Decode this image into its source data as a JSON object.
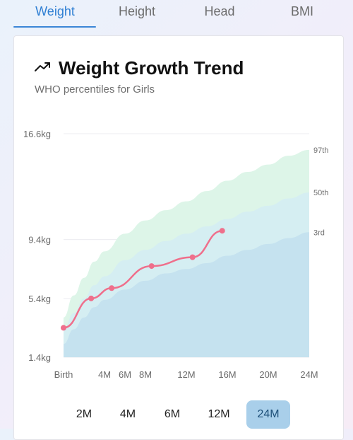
{
  "tabs": [
    {
      "label": "Weight",
      "active": true
    },
    {
      "label": "Height",
      "active": false
    },
    {
      "label": "Head",
      "active": false
    },
    {
      "label": "BMI",
      "active": false
    }
  ],
  "card": {
    "title": "Weight Growth Trend",
    "subtitle": "WHO percentiles for Girls",
    "title_icon": "trending-up-icon"
  },
  "chart_data": {
    "type": "line",
    "x_tick_labels": [
      "Birth",
      "4M",
      "6M",
      "8M",
      "12M",
      "16M",
      "20M",
      "24M"
    ],
    "x_tick_months": [
      0,
      4,
      6,
      8,
      12,
      16,
      20,
      24
    ],
    "y_tick_labels": [
      "16.6kg",
      "9.4kg",
      "5.4kg",
      "1.4kg"
    ],
    "y_tick_values": [
      16.6,
      9.4,
      5.4,
      1.4
    ],
    "ylim": [
      1.4,
      16.6
    ],
    "xlim": [
      0,
      24
    ],
    "percentile_labels": [
      "97th",
      "50th",
      "3rd"
    ],
    "percentile_bands": {
      "months": [
        0,
        1,
        2,
        3,
        4,
        6,
        8,
        10,
        12,
        14,
        16,
        18,
        20,
        22,
        24
      ],
      "p3": [
        2.3,
        3.3,
        4.1,
        4.8,
        5.3,
        6.0,
        6.6,
        7.1,
        7.4,
        7.8,
        8.3,
        8.7,
        9.1,
        9.5,
        9.9
      ],
      "p50": [
        3.3,
        4.4,
        5.4,
        6.3,
        6.9,
        8.0,
        8.7,
        9.3,
        9.8,
        10.3,
        10.8,
        11.3,
        11.7,
        12.2,
        12.6
      ],
      "p97": [
        4.1,
        5.6,
        6.8,
        7.9,
        8.6,
        9.8,
        10.7,
        11.4,
        12.0,
        12.7,
        13.4,
        14.0,
        14.5,
        15.1,
        15.5
      ]
    },
    "series": [
      {
        "months": [
          0,
          2.7,
          4.7,
          8.6,
          12.6,
          15.5
        ],
        "values": [
          3.4,
          5.4,
          6.1,
          7.6,
          8.2,
          10.0
        ],
        "color": "#ef6f8b"
      }
    ],
    "band_colors": {
      "outer": "#ddf5e8",
      "middle": "#d5eef2",
      "inner": "#c5e2ef"
    },
    "grid": true
  },
  "ranges": [
    {
      "label": "2M",
      "active": false
    },
    {
      "label": "4M",
      "active": false
    },
    {
      "label": "6M",
      "active": false
    },
    {
      "label": "12M",
      "active": false
    },
    {
      "label": "24M",
      "active": true
    }
  ]
}
